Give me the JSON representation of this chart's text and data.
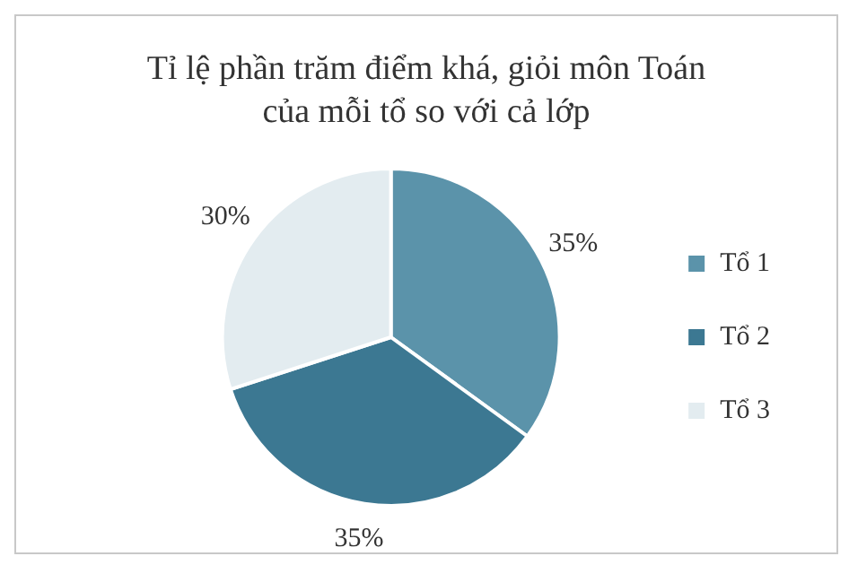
{
  "chart_data": {
    "type": "pie",
    "title": "Tỉ lệ phần trăm điểm khá, giỏi môn Toán của mỗi tổ so với cả lớp",
    "categories": [
      "Tổ 1",
      "Tổ 2",
      "Tổ 3"
    ],
    "values": [
      35,
      35,
      30
    ],
    "colors": [
      "#5b93aa",
      "#3c7892",
      "#e3ecf0"
    ],
    "value_labels": [
      "35%",
      "35%",
      "30%"
    ],
    "legend": "right"
  }
}
